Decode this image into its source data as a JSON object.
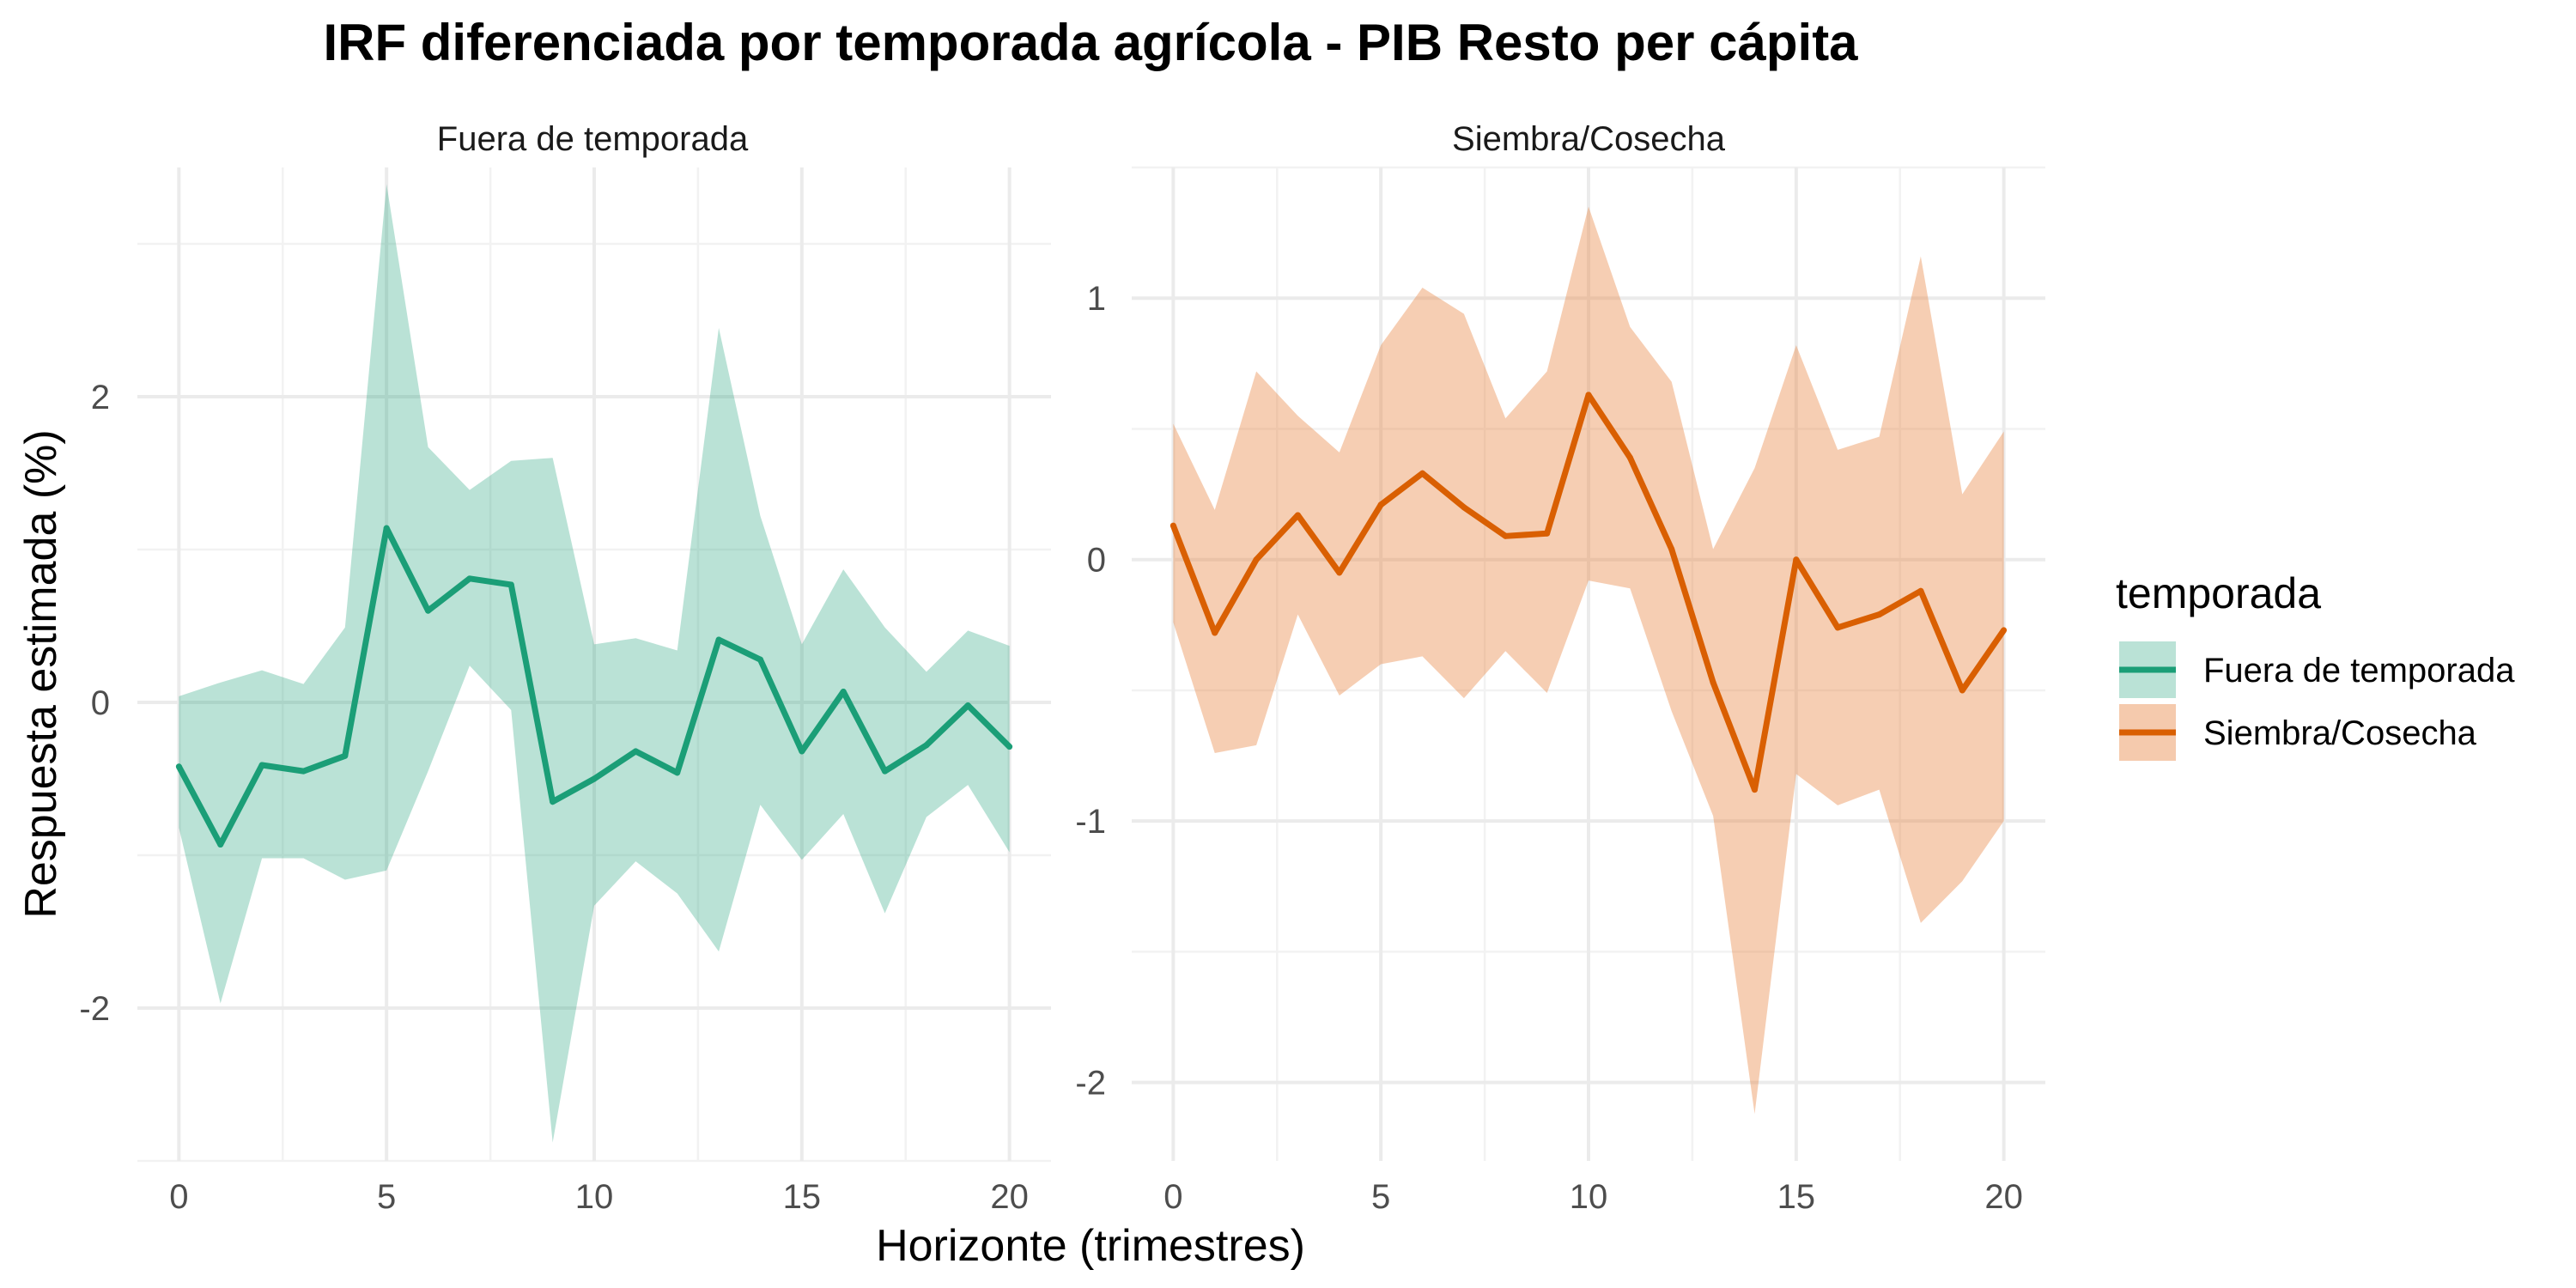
{
  "chart_data": {
    "type": "line",
    "title": "IRF diferenciada por temporada agrícola - PIB Resto per cápita",
    "xlabel": "Horizonte (trimestres)",
    "ylabel": "Respuesta estimada (%)",
    "legend": {
      "title": "temporada",
      "placement": "right"
    },
    "panels": [
      {
        "name": "Fuera de temporada",
        "color": "#1b9e77",
        "fill": "#1b9e77",
        "x": [
          0,
          1,
          2,
          3,
          4,
          5,
          6,
          7,
          8,
          9,
          10,
          11,
          12,
          13,
          14,
          15,
          16,
          17,
          18,
          19,
          20
        ],
        "estimate": [
          -0.42,
          -0.93,
          -0.41,
          -0.45,
          -0.35,
          1.14,
          0.6,
          0.81,
          0.77,
          -0.65,
          -0.5,
          -0.32,
          -0.46,
          0.41,
          0.28,
          -0.32,
          0.07,
          -0.45,
          -0.28,
          -0.02,
          -0.29
        ],
        "lower": [
          -0.82,
          -1.97,
          -1.02,
          -1.02,
          -1.16,
          -1.1,
          -0.45,
          0.24,
          -0.05,
          -2.88,
          -1.33,
          -1.04,
          -1.25,
          -1.63,
          -0.67,
          -1.03,
          -0.73,
          -1.38,
          -0.75,
          -0.54,
          -0.98
        ],
        "upper": [
          0.04,
          0.13,
          0.21,
          0.12,
          0.49,
          3.39,
          1.67,
          1.39,
          1.58,
          1.6,
          0.38,
          0.42,
          0.34,
          2.45,
          1.22,
          0.38,
          0.87,
          0.49,
          0.2,
          0.47,
          0.37
        ],
        "ylim": [
          -3.0,
          3.5
        ],
        "yticks": [
          -2,
          0,
          2
        ],
        "xticks": [
          0,
          5,
          10,
          15,
          20
        ]
      },
      {
        "name": "Siembra/Cosecha",
        "color": "#d95f02",
        "fill": "#e98a4a",
        "x": [
          0,
          1,
          2,
          3,
          4,
          5,
          6,
          7,
          8,
          9,
          10,
          11,
          12,
          13,
          14,
          15,
          16,
          17,
          18,
          19,
          20
        ],
        "estimate": [
          0.13,
          -0.28,
          0.0,
          0.17,
          -0.05,
          0.21,
          0.33,
          0.2,
          0.09,
          0.1,
          0.63,
          0.39,
          0.04,
          -0.47,
          -0.88,
          0.0,
          -0.26,
          -0.21,
          -0.12,
          -0.5,
          -0.27
        ],
        "lower": [
          -0.24,
          -0.74,
          -0.71,
          -0.21,
          -0.52,
          -0.4,
          -0.37,
          -0.53,
          -0.35,
          -0.51,
          -0.08,
          -0.11,
          -0.58,
          -0.98,
          -2.12,
          -0.82,
          -0.94,
          -0.88,
          -1.39,
          -1.23,
          -1.0
        ],
        "upper": [
          0.52,
          0.19,
          0.72,
          0.55,
          0.41,
          0.82,
          1.04,
          0.94,
          0.54,
          0.72,
          1.35,
          0.89,
          0.68,
          0.04,
          0.35,
          0.82,
          0.42,
          0.47,
          1.16,
          0.25,
          0.49
        ],
        "ylim": [
          -2.3,
          1.5
        ],
        "yticks": [
          -2,
          -1,
          0,
          1
        ],
        "xticks": [
          0,
          5,
          10,
          15,
          20
        ]
      }
    ],
    "grid": true,
    "ribbon_alpha": 0.3
  }
}
